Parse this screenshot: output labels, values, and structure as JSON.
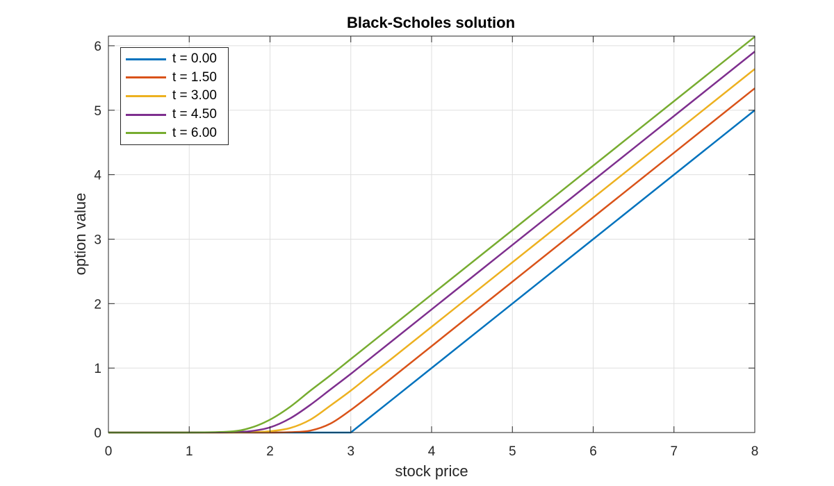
{
  "chart_data": {
    "type": "line",
    "title": "Black-Scholes solution",
    "xlabel": "stock price",
    "ylabel": "option value",
    "xlim": [
      0,
      8
    ],
    "ylim": [
      0,
      6.15
    ],
    "xticks": [
      0,
      1,
      2,
      3,
      4,
      5,
      6,
      7,
      8
    ],
    "yticks": [
      0,
      1,
      2,
      3,
      4,
      5,
      6
    ],
    "grid": true,
    "legend_position": "upper left",
    "x": [
      0,
      1,
      1.5,
      1.75,
      2,
      2.25,
      2.5,
      2.75,
      3,
      3.25,
      3.5,
      4,
      5,
      6,
      7,
      8
    ],
    "series": [
      {
        "name": "t = 0.00",
        "color": "#0072BD",
        "values": [
          0,
          0,
          0,
          0,
          0,
          0,
          0,
          0,
          0,
          0.25,
          0.5,
          1.0,
          2.0,
          3.0,
          4.0,
          5.0
        ]
      },
      {
        "name": "t = 1.50",
        "color": "#D95319",
        "values": [
          0,
          0,
          0,
          0,
          0,
          0.005,
          0.03,
          0.14,
          0.35,
          0.59,
          0.84,
          1.34,
          2.34,
          3.34,
          4.34,
          5.34
        ]
      },
      {
        "name": "t = 3.00",
        "color": "#EDB120",
        "values": [
          0,
          0,
          0,
          0.005,
          0.02,
          0.07,
          0.2,
          0.42,
          0.65,
          0.9,
          1.14,
          1.64,
          2.64,
          3.64,
          4.64,
          5.64
        ]
      },
      {
        "name": "t = 4.50",
        "color": "#7E2F8E",
        "values": [
          0,
          0,
          0.005,
          0.02,
          0.08,
          0.22,
          0.43,
          0.67,
          0.91,
          1.16,
          1.41,
          1.91,
          2.91,
          3.91,
          4.91,
          5.91
        ]
      },
      {
        "name": "t = 6.00",
        "color": "#77AC30",
        "values": [
          0,
          0,
          0.015,
          0.07,
          0.2,
          0.4,
          0.65,
          0.89,
          1.14,
          1.39,
          1.64,
          2.14,
          3.14,
          4.14,
          5.14,
          6.14
        ]
      }
    ]
  }
}
